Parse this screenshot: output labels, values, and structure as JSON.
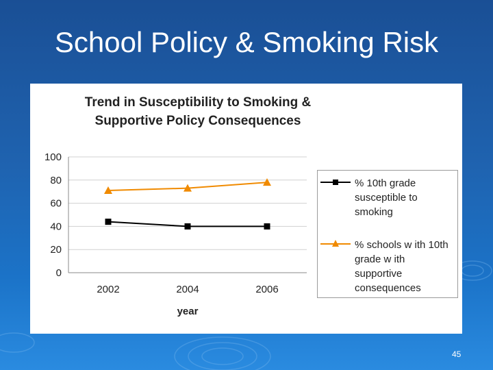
{
  "slide": {
    "title": "School Policy & Smoking Risk",
    "page_number": "45"
  },
  "colors": {
    "background": "#1f63b0",
    "series_1": "#000000",
    "series_2": "#f08a00",
    "grid": "#d0d0d0"
  },
  "chart_data": {
    "type": "line",
    "title_lines": [
      "Trend in Susceptibility to Smoking &",
      "Supportive Policy Consequences"
    ],
    "xlabel": "year",
    "ylabel": "",
    "categories": [
      "2002",
      "2004",
      "2006"
    ],
    "ylim": [
      0,
      100
    ],
    "yticks": [
      0,
      20,
      40,
      60,
      80,
      100
    ],
    "grid": true,
    "legend_position": "right",
    "series": [
      {
        "name": "% 10th grade susceptible to smoking",
        "legend_lines": [
          "% 10th grade",
          "susceptible to",
          "smoking"
        ],
        "values": [
          44,
          40,
          40
        ],
        "color": "#000000",
        "marker": "square"
      },
      {
        "name": "% schools with 10th grade with supportive consequences",
        "legend_lines": [
          "% schools w ith 10th",
          "grade w ith",
          "supportive",
          "consequences"
        ],
        "values": [
          71,
          73,
          78
        ],
        "color": "#f08a00",
        "marker": "triangle"
      }
    ]
  }
}
